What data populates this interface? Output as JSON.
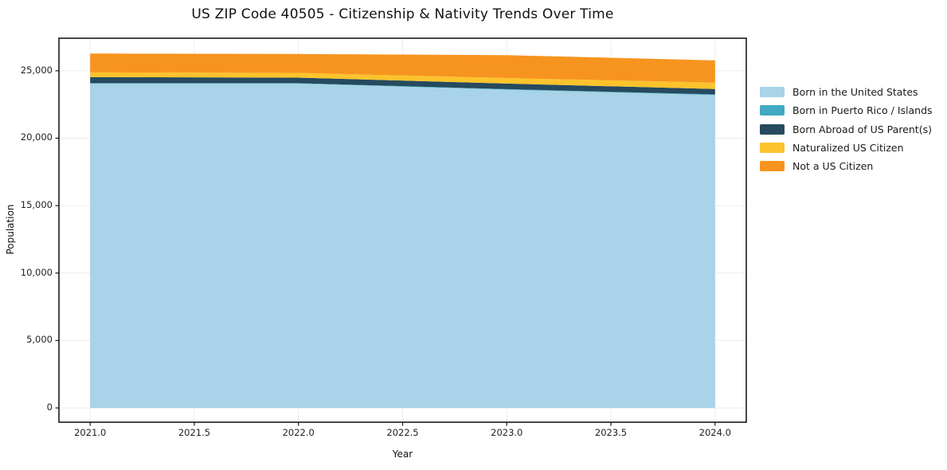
{
  "chart_data": {
    "type": "area",
    "stacked": true,
    "title": "US ZIP Code 40505 - Citizenship & Nativity Trends Over Time",
    "xlabel": "Year",
    "ylabel": "Population",
    "x": [
      2021,
      2022,
      2023,
      2024
    ],
    "series": [
      {
        "name": "Born in the United States",
        "color": "#a8d3e8",
        "values": [
          24050,
          24050,
          23600,
          23200
        ]
      },
      {
        "name": "Born in Puerto Rico / Islands",
        "color": "#41a9c1",
        "values": [
          30,
          30,
          40,
          50
        ]
      },
      {
        "name": "Born Abroad of US Parent(s)",
        "color": "#264a5e",
        "values": [
          450,
          410,
          410,
          400
        ]
      },
      {
        "name": "Naturalized US Citizen",
        "color": "#fcc32c",
        "values": [
          350,
          350,
          410,
          470
        ]
      },
      {
        "name": "Not a US Citizen",
        "color": "#f7941f",
        "values": [
          1400,
          1400,
          1700,
          1650
        ]
      }
    ],
    "xticks": [
      {
        "value": 2021.0,
        "label": "2021.0"
      },
      {
        "value": 2021.5,
        "label": "2021.5"
      },
      {
        "value": 2022.0,
        "label": "2022.0"
      },
      {
        "value": 2022.5,
        "label": "2022.5"
      },
      {
        "value": 2023.0,
        "label": "2023.0"
      },
      {
        "value": 2023.5,
        "label": "2023.5"
      },
      {
        "value": 2024.0,
        "label": "2024.0"
      }
    ],
    "yticks": [
      {
        "value": 0,
        "label": "0"
      },
      {
        "value": 5000,
        "label": "5,000"
      },
      {
        "value": 10000,
        "label": "10,000"
      },
      {
        "value": 15000,
        "label": "15,000"
      },
      {
        "value": 20000,
        "label": "20,000"
      },
      {
        "value": 25000,
        "label": "25,000"
      }
    ],
    "xlim": [
      2020.85,
      2024.15
    ],
    "ylim": [
      -1059,
      27412
    ],
    "grid": true,
    "grid_color": "#ececec",
    "spine_color": "#1a1a1a",
    "legend_position": "outside-right"
  }
}
